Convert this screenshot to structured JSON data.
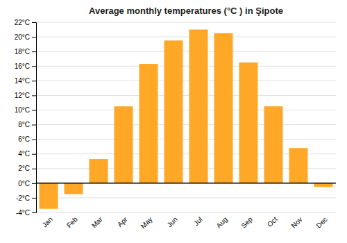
{
  "chart_data": {
    "type": "bar",
    "title": "Average monthly temperatures (°C ) in Şipote",
    "categories": [
      "Jan",
      "Feb",
      "Mar",
      "Apr",
      "May",
      "Jun",
      "Jul",
      "Aug",
      "Sep",
      "Oct",
      "Nov",
      "Dec"
    ],
    "values": [
      -3.5,
      -1.5,
      3.3,
      10.5,
      16.3,
      19.5,
      21.0,
      20.5,
      16.5,
      10.5,
      4.8,
      -0.5
    ],
    "color": "#FFA726",
    "ylim": [
      -4,
      22
    ],
    "yticks": [
      {
        "value": -4,
        "label": "-4°C"
      },
      {
        "value": -2,
        "label": "-2°C"
      },
      {
        "value": 0,
        "label": "0°C"
      },
      {
        "value": 2,
        "label": "2°C"
      },
      {
        "value": 4,
        "label": "4°C"
      },
      {
        "value": 6,
        "label": "6°C"
      },
      {
        "value": 8,
        "label": "8°C"
      },
      {
        "value": 10,
        "label": "10°C"
      },
      {
        "value": 12,
        "label": "12°C"
      },
      {
        "value": 14,
        "label": "14°C"
      },
      {
        "value": 16,
        "label": "16°C"
      },
      {
        "value": 18,
        "label": "18°C"
      },
      {
        "value": 20,
        "label": "20°C"
      },
      {
        "value": 22,
        "label": "22°C"
      }
    ],
    "grid": true
  }
}
